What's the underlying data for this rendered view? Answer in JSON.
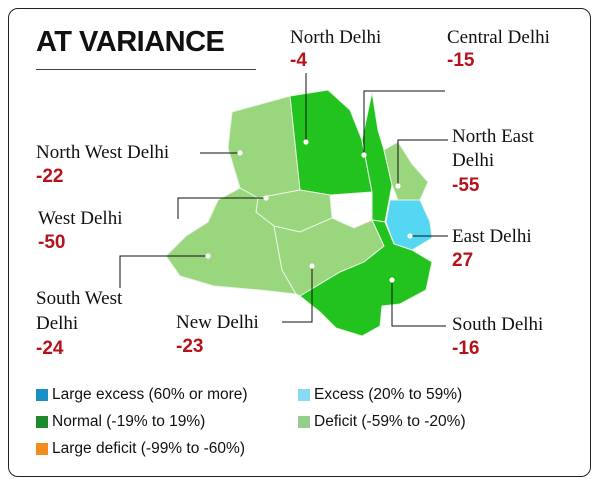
{
  "title": "AT VARIANCE",
  "districts": {
    "north": {
      "name": "North Delhi",
      "value": "-4"
    },
    "central": {
      "name": "Central Delhi",
      "value": "-15"
    },
    "north_east": {
      "name_line1": "North East",
      "name_line2": "Delhi",
      "value": "-55"
    },
    "north_west": {
      "name": "North West Delhi",
      "value": "-22"
    },
    "west": {
      "name": "West Delhi",
      "value": "-50"
    },
    "east": {
      "name": "East Delhi",
      "value": "27"
    },
    "south_west": {
      "name_line1": "South West",
      "name_line2": "Delhi",
      "value": "-24"
    },
    "new_delhi": {
      "name": "New Delhi",
      "value": "-23"
    },
    "south": {
      "name": "South Delhi",
      "value": "-16"
    }
  },
  "legend": [
    {
      "label": "Large excess (60% or more)",
      "color": "#1a8fc4"
    },
    {
      "label": "Excess (20% to 59%)",
      "color": "#87dcf2"
    },
    {
      "label": "Normal (-19% to 19%)",
      "color": "#1e8a2e"
    },
    {
      "label": "Deficit (-59% to -20%)",
      "color": "#93cf8a"
    },
    {
      "label": "Large deficit (-99% to -60%)",
      "color": "#f28c1e"
    }
  ],
  "colors": {
    "normal_map": "#22c21f",
    "deficit_map": "#9ad67e",
    "excess_map": "#55d6f2",
    "value_text": "#b5121b"
  }
}
